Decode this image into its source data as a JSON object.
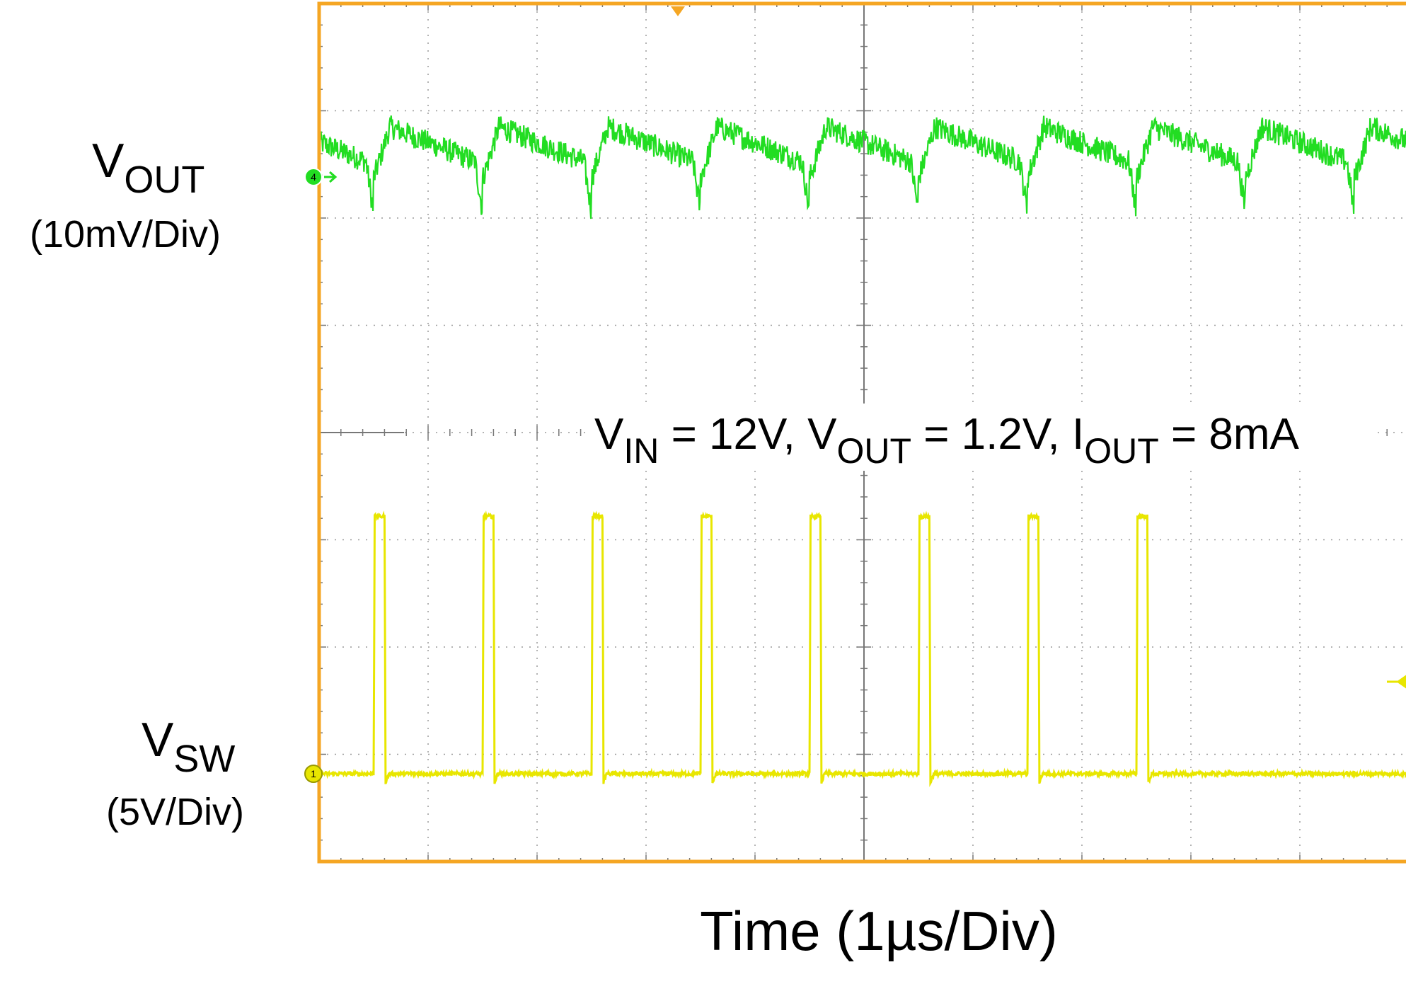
{
  "chart_data": {
    "type": "line",
    "title": "",
    "xlabel": "Time (1µs/Div)",
    "conditions": {
      "v": "V",
      "in": "IN",
      "vin_value": " = 12V, ",
      "out": "OUT",
      "vout_value": " = 1.2V, ",
      "i": "I",
      "iout_value": " = 8mA"
    },
    "grid": true,
    "divisions": {
      "x": 10,
      "y": 8
    },
    "x_range_div": [
      0,
      10
    ],
    "y_range_div": [
      0,
      8
    ],
    "colors": {
      "frame": "#f5a623",
      "grid": "#9a9a9a",
      "vout_trace": "#22dd22",
      "vsw_trace": "#e8e600"
    },
    "series": [
      {
        "name": "VOUT",
        "label_main": "V",
        "label_sub": "OUT",
        "scale": "(10mV/Div)",
        "channel_marker": "4",
        "color": "#22dd22",
        "baseline_div": 6.5,
        "ripple_mv": 3.5,
        "dip_mv": 4.5,
        "ramp_starts_us": [
          0.5,
          1.5,
          2.5,
          3.5,
          4.5,
          5.5,
          6.5,
          7.5
        ]
      },
      {
        "name": "VSW",
        "label_main": "V",
        "label_sub": "SW",
        "scale": "(5V/Div)",
        "channel_marker": "1",
        "color": "#e8e600",
        "low_v": 0,
        "high_v": 12,
        "pulse_starts_us": [
          0.5,
          1.5,
          2.5,
          3.5,
          4.5,
          5.5,
          6.5,
          7.5
        ],
        "pulse_width_us": 0.1
      }
    ]
  }
}
